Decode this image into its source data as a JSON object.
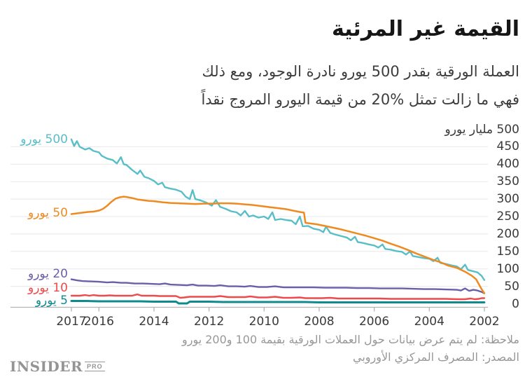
{
  "header": {
    "title": "القيمة غير المرئية",
    "subtitle_line1": "العملة الورقية بقدر 500 يورو نادرة الوجود، ومع ذلك",
    "subtitle_line2": "فهي ما زالت تمثل %20 من قيمة اليورو المروج نقداً"
  },
  "footer": {
    "note": "ملاحظة: لم يتم عرض بيانات حول العملات الورقية بقيمة 100 و200 يورو",
    "source": "المصدر: المصرف المركزي الأوروبي",
    "logo_main": "INSIDER",
    "logo_sub": "PRO"
  },
  "colors": {
    "grid": "#e8e8e8",
    "axis": "#b4b4b4",
    "tick_text": "#3a3a3a",
    "note_text": "#979797"
  },
  "chart_data": {
    "type": "line",
    "y_unit": "مليار يورو",
    "y_top_label": "500 مليار يورو",
    "y_ticks": [
      450,
      400,
      350,
      300,
      250,
      200,
      150,
      100,
      50,
      0
    ],
    "y_range": [
      0,
      500
    ],
    "x_ticks": [
      2017,
      2016,
      2014,
      2012,
      2010,
      2008,
      2006,
      2004,
      2002
    ],
    "x_reversed": true,
    "grid": true,
    "legend_position": "inline-left",
    "series": [
      {
        "id": "500",
        "label": "500 يورو",
        "color": "#58bec7",
        "width": 2.4,
        "points": [
          [
            2017.0,
            471
          ],
          [
            2016.9,
            452
          ],
          [
            2016.8,
            466
          ],
          [
            2016.7,
            450
          ],
          [
            2016.5,
            442
          ],
          [
            2016.35,
            446
          ],
          [
            2016.2,
            438
          ],
          [
            2016.0,
            434
          ],
          [
            2015.9,
            424
          ],
          [
            2015.7,
            416
          ],
          [
            2015.5,
            412
          ],
          [
            2015.35,
            402
          ],
          [
            2015.2,
            420
          ],
          [
            2015.1,
            400
          ],
          [
            2015.0,
            398
          ],
          [
            2014.8,
            384
          ],
          [
            2014.6,
            372
          ],
          [
            2014.5,
            382
          ],
          [
            2014.35,
            364
          ],
          [
            2014.2,
            360
          ],
          [
            2014.0,
            352
          ],
          [
            2013.85,
            342
          ],
          [
            2013.7,
            347
          ],
          [
            2013.6,
            334
          ],
          [
            2013.4,
            330
          ],
          [
            2013.2,
            327
          ],
          [
            2013.0,
            321
          ],
          [
            2012.85,
            307
          ],
          [
            2012.7,
            300
          ],
          [
            2012.6,
            326
          ],
          [
            2012.5,
            300
          ],
          [
            2012.3,
            296
          ],
          [
            2012.1,
            290
          ],
          [
            2011.9,
            281
          ],
          [
            2011.75,
            297
          ],
          [
            2011.6,
            278
          ],
          [
            2011.4,
            272
          ],
          [
            2011.2,
            265
          ],
          [
            2011.0,
            262
          ],
          [
            2010.85,
            253
          ],
          [
            2010.7,
            266
          ],
          [
            2010.55,
            250
          ],
          [
            2010.4,
            253
          ],
          [
            2010.2,
            247
          ],
          [
            2010.0,
            250
          ],
          [
            2009.85,
            243
          ],
          [
            2009.7,
            262
          ],
          [
            2009.6,
            240
          ],
          [
            2009.4,
            243
          ],
          [
            2009.2,
            240
          ],
          [
            2009.0,
            238
          ],
          [
            2008.85,
            228
          ],
          [
            2008.7,
            250
          ],
          [
            2008.6,
            222
          ],
          [
            2008.4,
            223
          ],
          [
            2008.2,
            215
          ],
          [
            2008.0,
            212
          ],
          [
            2007.85,
            205
          ],
          [
            2007.75,
            221
          ],
          [
            2007.6,
            203
          ],
          [
            2007.4,
            198
          ],
          [
            2007.2,
            194
          ],
          [
            2007.0,
            190
          ],
          [
            2006.85,
            182
          ],
          [
            2006.7,
            192
          ],
          [
            2006.6,
            177
          ],
          [
            2006.4,
            174
          ],
          [
            2006.2,
            170
          ],
          [
            2006.0,
            167
          ],
          [
            2005.85,
            161
          ],
          [
            2005.7,
            170
          ],
          [
            2005.6,
            157
          ],
          [
            2005.4,
            155
          ],
          [
            2005.2,
            151
          ],
          [
            2005.0,
            149
          ],
          [
            2004.85,
            141
          ],
          [
            2004.7,
            150
          ],
          [
            2004.6,
            137
          ],
          [
            2004.4,
            134
          ],
          [
            2004.2,
            131
          ],
          [
            2004.0,
            129
          ],
          [
            2003.85,
            122
          ],
          [
            2003.7,
            132
          ],
          [
            2003.6,
            117
          ],
          [
            2003.4,
            114
          ],
          [
            2003.2,
            110
          ],
          [
            2003.0,
            107
          ],
          [
            2002.85,
            99
          ],
          [
            2002.7,
            112
          ],
          [
            2002.6,
            97
          ],
          [
            2002.4,
            93
          ],
          [
            2002.25,
            90
          ],
          [
            2002.1,
            80
          ],
          [
            2002.0,
            68
          ]
        ]
      },
      {
        "id": "20",
        "label": "20 يورو",
        "color": "#6a5fa8",
        "width": 2.4,
        "points": [
          [
            2017.0,
            70
          ],
          [
            2016.8,
            67
          ],
          [
            2016.6,
            65
          ],
          [
            2016.3,
            64
          ],
          [
            2016.0,
            63
          ],
          [
            2015.7,
            61
          ],
          [
            2015.5,
            62
          ],
          [
            2015.2,
            60
          ],
          [
            2015.0,
            60
          ],
          [
            2014.7,
            58
          ],
          [
            2014.4,
            58
          ],
          [
            2014.1,
            57
          ],
          [
            2013.8,
            56
          ],
          [
            2013.6,
            58
          ],
          [
            2013.4,
            55
          ],
          [
            2013.1,
            54
          ],
          [
            2012.8,
            53
          ],
          [
            2012.6,
            55
          ],
          [
            2012.4,
            52
          ],
          [
            2012.1,
            52
          ],
          [
            2011.8,
            51
          ],
          [
            2011.6,
            53
          ],
          [
            2011.3,
            50
          ],
          [
            2011.0,
            50
          ],
          [
            2010.7,
            49
          ],
          [
            2010.5,
            51
          ],
          [
            2010.2,
            48
          ],
          [
            2009.9,
            48
          ],
          [
            2009.6,
            50
          ],
          [
            2009.3,
            47
          ],
          [
            2009.0,
            47
          ],
          [
            2008.6,
            47
          ],
          [
            2008.2,
            47
          ],
          [
            2007.8,
            46
          ],
          [
            2007.4,
            46
          ],
          [
            2007.0,
            46
          ],
          [
            2006.6,
            45
          ],
          [
            2006.2,
            45
          ],
          [
            2005.8,
            44
          ],
          [
            2005.4,
            44
          ],
          [
            2005.0,
            44
          ],
          [
            2004.6,
            43
          ],
          [
            2004.2,
            42
          ],
          [
            2003.8,
            42
          ],
          [
            2003.4,
            41
          ],
          [
            2003.0,
            40
          ],
          [
            2002.85,
            38
          ],
          [
            2002.7,
            44
          ],
          [
            2002.55,
            37
          ],
          [
            2002.4,
            40
          ],
          [
            2002.25,
            38
          ],
          [
            2002.1,
            34
          ],
          [
            2002.0,
            30
          ]
        ]
      },
      {
        "id": "10",
        "label": "10 يورو",
        "color": "#ee4a4c",
        "width": 2.4,
        "points": [
          [
            2017.0,
            23
          ],
          [
            2016.7,
            23
          ],
          [
            2016.5,
            25
          ],
          [
            2016.35,
            23
          ],
          [
            2016.2,
            25
          ],
          [
            2016.0,
            23
          ],
          [
            2015.8,
            23
          ],
          [
            2015.6,
            24
          ],
          [
            2015.4,
            23
          ],
          [
            2015.0,
            23
          ],
          [
            2014.8,
            23
          ],
          [
            2014.6,
            27
          ],
          [
            2014.45,
            23
          ],
          [
            2014.2,
            23
          ],
          [
            2014.0,
            23
          ],
          [
            2013.8,
            22
          ],
          [
            2013.5,
            22
          ],
          [
            2013.2,
            22
          ],
          [
            2013.05,
            17
          ],
          [
            2012.9,
            18
          ],
          [
            2012.7,
            20
          ],
          [
            2012.4,
            20
          ],
          [
            2012.1,
            20
          ],
          [
            2011.8,
            20
          ],
          [
            2011.6,
            22
          ],
          [
            2011.3,
            19
          ],
          [
            2011.0,
            19
          ],
          [
            2010.7,
            19
          ],
          [
            2010.5,
            21
          ],
          [
            2010.2,
            18
          ],
          [
            2009.9,
            18
          ],
          [
            2009.6,
            20
          ],
          [
            2009.3,
            17
          ],
          [
            2009.0,
            17
          ],
          [
            2008.7,
            18
          ],
          [
            2008.5,
            16
          ],
          [
            2008.2,
            16
          ],
          [
            2007.9,
            16
          ],
          [
            2007.6,
            17
          ],
          [
            2007.3,
            15
          ],
          [
            2007.0,
            15
          ],
          [
            2006.6,
            15
          ],
          [
            2006.2,
            15
          ],
          [
            2005.8,
            15
          ],
          [
            2005.4,
            14
          ],
          [
            2005.0,
            14
          ],
          [
            2004.6,
            14
          ],
          [
            2004.2,
            14
          ],
          [
            2003.8,
            14
          ],
          [
            2003.4,
            14
          ],
          [
            2003.0,
            13
          ],
          [
            2002.7,
            13
          ],
          [
            2002.5,
            15
          ],
          [
            2002.35,
            13
          ],
          [
            2002.2,
            14
          ],
          [
            2002.1,
            16
          ],
          [
            2002.0,
            16
          ]
        ]
      },
      {
        "id": "5",
        "label": "5 يورو",
        "color": "#0f8b8e",
        "width": 3,
        "points": [
          [
            2017.0,
            8
          ],
          [
            2016.5,
            8
          ],
          [
            2016.0,
            7
          ],
          [
            2015.5,
            7
          ],
          [
            2015.0,
            7
          ],
          [
            2014.5,
            7
          ],
          [
            2014.0,
            6
          ],
          [
            2013.5,
            6
          ],
          [
            2013.2,
            6
          ],
          [
            2013.1,
            1
          ],
          [
            2012.8,
            1
          ],
          [
            2012.7,
            6
          ],
          [
            2012.4,
            6
          ],
          [
            2012.0,
            6
          ],
          [
            2011.5,
            5
          ],
          [
            2011.0,
            5
          ],
          [
            2010.5,
            5
          ],
          [
            2010.0,
            5
          ],
          [
            2009.5,
            5
          ],
          [
            2009.0,
            5
          ],
          [
            2008.5,
            5
          ],
          [
            2008.0,
            4
          ],
          [
            2007.5,
            4
          ],
          [
            2007.0,
            4
          ],
          [
            2006.5,
            4
          ],
          [
            2006.0,
            4
          ],
          [
            2005.5,
            4
          ],
          [
            2005.0,
            4
          ],
          [
            2004.5,
            4
          ],
          [
            2004.0,
            4
          ],
          [
            2003.5,
            4
          ],
          [
            2003.0,
            4
          ],
          [
            2002.5,
            4
          ],
          [
            2002.0,
            4
          ]
        ]
      },
      {
        "id": "50",
        "label": "50 يورو",
        "color": "#ef8a20",
        "width": 2.5,
        "points": [
          [
            2017.0,
            257
          ],
          [
            2016.8,
            259
          ],
          [
            2016.6,
            261
          ],
          [
            2016.4,
            263
          ],
          [
            2016.2,
            264
          ],
          [
            2016.0,
            267
          ],
          [
            2015.85,
            272
          ],
          [
            2015.7,
            281
          ],
          [
            2015.55,
            292
          ],
          [
            2015.4,
            301
          ],
          [
            2015.25,
            305
          ],
          [
            2015.1,
            307
          ],
          [
            2015.0,
            306
          ],
          [
            2014.8,
            303
          ],
          [
            2014.6,
            299
          ],
          [
            2014.4,
            297
          ],
          [
            2014.2,
            295
          ],
          [
            2014.0,
            294
          ],
          [
            2013.7,
            291
          ],
          [
            2013.4,
            289
          ],
          [
            2013.1,
            288
          ],
          [
            2012.8,
            287
          ],
          [
            2012.5,
            286
          ],
          [
            2012.2,
            287
          ],
          [
            2011.9,
            287
          ],
          [
            2011.6,
            288
          ],
          [
            2011.3,
            288
          ],
          [
            2011.0,
            287
          ],
          [
            2010.7,
            285
          ],
          [
            2010.4,
            283
          ],
          [
            2010.1,
            280
          ],
          [
            2009.8,
            277
          ],
          [
            2009.5,
            274
          ],
          [
            2009.2,
            271
          ],
          [
            2008.9,
            266
          ],
          [
            2008.7,
            263
          ],
          [
            2008.55,
            261
          ],
          [
            2008.5,
            232
          ],
          [
            2008.3,
            230
          ],
          [
            2008.1,
            228
          ],
          [
            2007.8,
            223
          ],
          [
            2007.5,
            218
          ],
          [
            2007.2,
            213
          ],
          [
            2006.9,
            207
          ],
          [
            2006.6,
            201
          ],
          [
            2006.3,
            195
          ],
          [
            2006.0,
            188
          ],
          [
            2005.7,
            181
          ],
          [
            2005.4,
            172
          ],
          [
            2005.1,
            164
          ],
          [
            2004.8,
            155
          ],
          [
            2004.5,
            145
          ],
          [
            2004.2,
            136
          ],
          [
            2003.9,
            127
          ],
          [
            2003.6,
            119
          ],
          [
            2003.3,
            109
          ],
          [
            2003.0,
            103
          ],
          [
            2002.7,
            92
          ],
          [
            2002.45,
            80
          ],
          [
            2002.3,
            70
          ],
          [
            2002.2,
            56
          ],
          [
            2002.1,
            42
          ],
          [
            2002.0,
            30
          ]
        ]
      }
    ]
  }
}
